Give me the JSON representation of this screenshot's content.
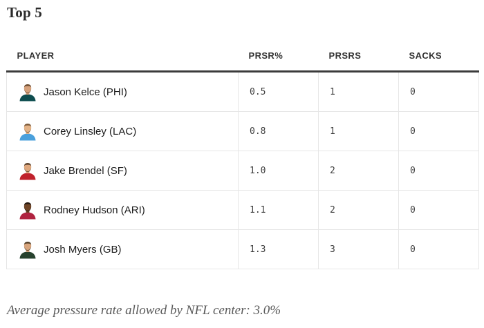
{
  "title": "Top 5",
  "table": {
    "columns": [
      {
        "key": "player",
        "label": "PLAYER"
      },
      {
        "key": "prsr_pct",
        "label": "PRSR%"
      },
      {
        "key": "prsrs",
        "label": "PRSRS"
      },
      {
        "key": "sacks",
        "label": "SACKS"
      }
    ],
    "rows": [
      {
        "player": "Jason Kelce (PHI)",
        "prsr_pct": "0.5",
        "prsrs": "1",
        "sacks": "0",
        "avatar": {
          "icon": "player-headshot-icon",
          "jersey": "#0e4d4f",
          "skin": "#d6a27d",
          "hair": "#6d4e33"
        }
      },
      {
        "player": "Corey Linsley (LAC)",
        "prsr_pct": "0.8",
        "prsrs": "1",
        "sacks": "0",
        "avatar": {
          "icon": "player-headshot-icon",
          "jersey": "#4aa0dc",
          "skin": "#e3b388",
          "hair": "#7d5a39"
        }
      },
      {
        "player": "Jake Brendel (SF)",
        "prsr_pct": "1.0",
        "prsrs": "2",
        "sacks": "0",
        "avatar": {
          "icon": "player-headshot-icon",
          "jersey": "#c0222c",
          "skin": "#dfa87e",
          "hair": "#5c432e"
        }
      },
      {
        "player": "Rodney Hudson (ARI)",
        "prsr_pct": "1.1",
        "prsrs": "2",
        "sacks": "0",
        "avatar": {
          "icon": "player-headshot-icon",
          "jersey": "#b02340",
          "skin": "#6f4526",
          "hair": "#241811"
        }
      },
      {
        "player": "Josh Myers (GB)",
        "prsr_pct": "1.3",
        "prsrs": "3",
        "sacks": "0",
        "avatar": {
          "icon": "player-headshot-icon",
          "jersey": "#27422e",
          "skin": "#d8a57d",
          "hair": "#53402a"
        }
      }
    ]
  },
  "footnote": "Average pressure rate allowed by NFL center: 3.0%",
  "colors": {
    "header_rule": "#3b3b3b",
    "row_border": "#e6e6e6",
    "title_text": "#2b2b2b",
    "header_text": "#333333",
    "name_text": "#1c1c1c",
    "stat_text": "#3d3d3d",
    "footnote_text": "#595959"
  }
}
